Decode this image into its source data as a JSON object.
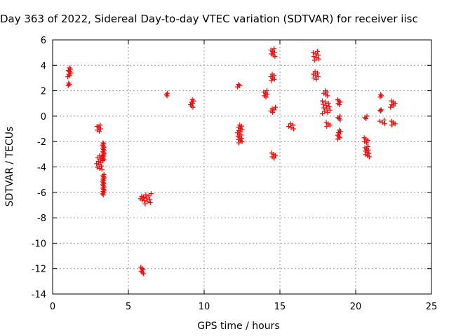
{
  "chart_data": {
    "type": "scatter",
    "title": "Day 363 of 2022, Sidereal Day-to-day VTEC variation (SDTVAR) for receiver iisc",
    "xlabel": "GPS time / hours",
    "ylabel": "SDTVAR / TECUs",
    "xlim": [
      0,
      25
    ],
    "ylim": [
      -14,
      6
    ],
    "xticks": [
      "0",
      "5",
      "10",
      "15",
      "20",
      "25"
    ],
    "yticks": [
      "6",
      "4",
      "2",
      "0",
      "-2",
      "-4",
      "-6",
      "-8",
      "-10",
      "-12",
      "-14"
    ],
    "grid": true,
    "marker": "plus",
    "color": "#ff0000",
    "series": [
      {
        "name": "SDTVAR",
        "clusters": [
          {
            "x": [
              1.0,
              1.2
            ],
            "y": [
              3.1,
              3.8
            ]
          },
          {
            "x": [
              1.0,
              1.1
            ],
            "y": [
              2.4,
              2.6
            ]
          },
          {
            "x": [
              2.9,
              3.2
            ],
            "y": [
              -1.2,
              -0.7
            ]
          },
          {
            "x": [
              2.9,
              3.3
            ],
            "y": [
              -4.2,
              -3.1
            ]
          },
          {
            "x": [
              3.3,
              3.4
            ],
            "y": [
              -3.5,
              -2.1
            ]
          },
          {
            "x": [
              3.3,
              3.4
            ],
            "y": [
              -6.2,
              -4.6
            ]
          },
          {
            "x": [
              5.7,
              6.0
            ],
            "y": [
              -6.6,
              -6.3
            ]
          },
          {
            "x": [
              5.8,
              6.0
            ],
            "y": [
              -12.4,
              -11.9
            ]
          },
          {
            "x": [
              6.0,
              6.5
            ],
            "y": [
              -6.9,
              -6.1
            ]
          },
          {
            "x": [
              7.5,
              7.6
            ],
            "y": [
              1.6,
              1.8
            ]
          },
          {
            "x": [
              9.1,
              9.3
            ],
            "y": [
              0.7,
              1.3
            ]
          },
          {
            "x": [
              12.2,
              12.4
            ],
            "y": [
              2.3,
              2.5
            ]
          },
          {
            "x": [
              12.2,
              12.5
            ],
            "y": [
              -2.1,
              -0.7
            ]
          },
          {
            "x": [
              13.9,
              14.2
            ],
            "y": [
              1.5,
              2.0
            ]
          },
          {
            "x": [
              14.4,
              14.7
            ],
            "y": [
              4.7,
              5.3
            ]
          },
          {
            "x": [
              14.4,
              14.7
            ],
            "y": [
              2.8,
              3.3
            ]
          },
          {
            "x": [
              14.4,
              14.7
            ],
            "y": [
              0.3,
              0.7
            ]
          },
          {
            "x": [
              14.4,
              14.7
            ],
            "y": [
              -3.3,
              -2.9
            ]
          },
          {
            "x": [
              15.5,
              15.9
            ],
            "y": [
              -1.0,
              -0.6
            ]
          },
          {
            "x": [
              17.2,
              17.6
            ],
            "y": [
              4.4,
              5.1
            ]
          },
          {
            "x": [
              17.2,
              17.6
            ],
            "y": [
              2.9,
              3.5
            ]
          },
          {
            "x": [
              17.9,
              18.2
            ],
            "y": [
              1.6,
              2.0
            ]
          },
          {
            "x": [
              17.8,
              18.3
            ],
            "y": [
              0.2,
              1.2
            ]
          },
          {
            "x": [
              18.0,
              18.3
            ],
            "y": [
              -0.8,
              -0.5
            ]
          },
          {
            "x": [
              18.8,
              19.0
            ],
            "y": [
              0.9,
              1.3
            ]
          },
          {
            "x": [
              18.8,
              19.0
            ],
            "y": [
              -0.3,
              0.0
            ]
          },
          {
            "x": [
              18.8,
              19.0
            ],
            "y": [
              -1.8,
              -1.1
            ]
          },
          {
            "x": [
              20.6,
              20.8
            ],
            "y": [
              -0.2,
              0.0
            ]
          },
          {
            "x": [
              20.5,
              20.8
            ],
            "y": [
              -2.1,
              -1.7
            ]
          },
          {
            "x": [
              20.6,
              20.9
            ],
            "y": [
              -3.2,
              -2.4
            ]
          },
          {
            "x": [
              21.6,
              21.7
            ],
            "y": [
              1.5,
              1.7
            ]
          },
          {
            "x": [
              21.6,
              21.7
            ],
            "y": [
              0.4,
              0.5
            ]
          },
          {
            "x": [
              21.6,
              22.0
            ],
            "y": [
              -0.6,
              -0.3
            ]
          },
          {
            "x": [
              22.3,
              22.6
            ],
            "y": [
              0.7,
              1.2
            ]
          },
          {
            "x": [
              22.3,
              22.6
            ],
            "y": [
              -0.7,
              -0.4
            ]
          }
        ]
      }
    ]
  }
}
